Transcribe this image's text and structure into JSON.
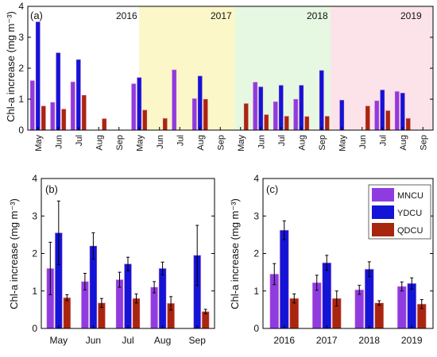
{
  "colors": {
    "MNCU": "#8e3ce0",
    "YDCU": "#1414d6",
    "QDCU": "#a8260e",
    "bg_2017": "#fbf7c8",
    "bg_2018": "#e6f8e1",
    "bg_2019": "#fbe3e9",
    "errorbar": "#000000"
  },
  "chart_data": [
    {
      "panel_label": "(a)",
      "type": "bar",
      "ylabel": "Chl-a increase (mg m⁻³)",
      "ylim": [
        0,
        4
      ],
      "yticks": [
        "0",
        "1",
        "2",
        "3",
        "4"
      ],
      "year_labels": [
        "2016",
        "2017",
        "2018",
        "2019"
      ],
      "categories": [
        "May",
        "Jun",
        "Jul",
        "Aug",
        "Sep",
        "May",
        "Jun",
        "Jul",
        "Aug",
        "Sep",
        "May",
        "Jun",
        "Jul",
        "Aug",
        "Sep",
        "May",
        "Jun",
        "Jul",
        "Aug",
        "Sep"
      ],
      "series": [
        {
          "name": "MNCU",
          "values": [
            1.6,
            0.9,
            1.56,
            null,
            null,
            1.5,
            null,
            1.95,
            1.02,
            null,
            null,
            1.55,
            0.92,
            1.0,
            null,
            null,
            null,
            0.95,
            1.25,
            null
          ]
        },
        {
          "name": "YDCU",
          "values": [
            3.5,
            2.5,
            2.28,
            null,
            null,
            1.7,
            null,
            null,
            1.75,
            null,
            null,
            1.4,
            1.45,
            1.45,
            1.93,
            0.97,
            null,
            1.3,
            1.2,
            null
          ]
        },
        {
          "name": "QDCU",
          "values": [
            0.78,
            0.68,
            1.13,
            0.37,
            null,
            0.65,
            0.38,
            null,
            1.0,
            null,
            0.86,
            0.5,
            0.45,
            0.44,
            0.45,
            null,
            0.78,
            0.63,
            0.38,
            null
          ]
        }
      ]
    },
    {
      "panel_label": "(b)",
      "type": "bar",
      "ylabel": "Chl-a increase (mg m⁻³)",
      "ylim": [
        0,
        4
      ],
      "yticks": [
        "0",
        "1",
        "2",
        "3",
        "4"
      ],
      "categories": [
        "May",
        "Jun",
        "Jul",
        "Aug",
        "Sep"
      ],
      "series": [
        {
          "name": "MNCU",
          "values": [
            1.6,
            1.25,
            1.3,
            1.1,
            null
          ],
          "errors": [
            0.7,
            0.22,
            0.2,
            0.15,
            null
          ]
        },
        {
          "name": "YDCU",
          "values": [
            2.55,
            2.2,
            1.72,
            1.6,
            1.95
          ],
          "errors": [
            0.85,
            0.35,
            0.18,
            0.17,
            0.8
          ]
        },
        {
          "name": "QDCU",
          "values": [
            0.82,
            0.68,
            0.8,
            0.67,
            0.45
          ],
          "errors": [
            0.08,
            0.12,
            0.12,
            0.18,
            0.06
          ]
        }
      ]
    },
    {
      "panel_label": "(c)",
      "type": "bar",
      "ylabel": "Chl-a increase (mg m⁻³)",
      "ylim": [
        0,
        4
      ],
      "yticks": [
        "0",
        "1",
        "2",
        "3",
        "4"
      ],
      "categories": [
        "2016",
        "2017",
        "2018",
        "2019"
      ],
      "legend": [
        "MNCU",
        "YDCU",
        "QDCU"
      ],
      "legend_position": "top-right",
      "series": [
        {
          "name": "MNCU",
          "values": [
            1.45,
            1.22,
            1.03,
            1.12
          ],
          "errors": [
            0.28,
            0.2,
            0.12,
            0.12
          ]
        },
        {
          "name": "YDCU",
          "values": [
            2.62,
            1.75,
            1.58,
            1.2
          ],
          "errors": [
            0.25,
            0.2,
            0.2,
            0.15
          ]
        },
        {
          "name": "QDCU",
          "values": [
            0.8,
            0.8,
            0.68,
            0.65
          ],
          "errors": [
            0.12,
            0.2,
            0.06,
            0.12
          ]
        }
      ]
    }
  ]
}
